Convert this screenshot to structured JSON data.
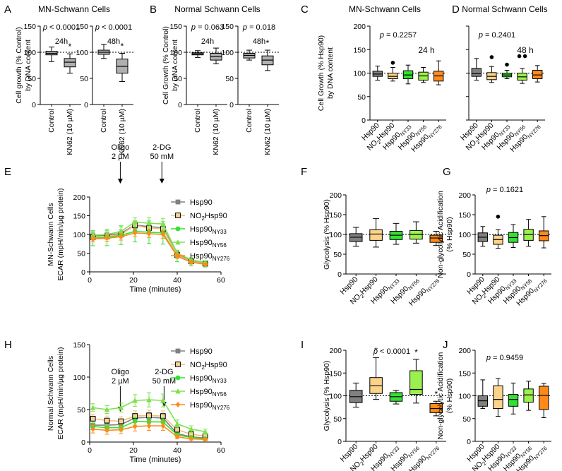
{
  "chart_data": [
    {
      "id": "A",
      "panel_label": "A",
      "type": "box",
      "title": "MN-Schwann Cells",
      "ylabel": [
        "Cell growth (% Control)",
        "by DNA content"
      ],
      "ylim": [
        0,
        150
      ],
      "yticks": [
        0,
        50,
        100,
        150
      ],
      "reference_line": 100,
      "subplots": [
        {
          "label": "24h",
          "pvalue": "p < 0.0001",
          "categories": [
            "Control",
            "KN62 (10 µM)"
          ],
          "boxes": [
            {
              "min": 82,
              "q1": 95,
              "median": 98,
              "q3": 102,
              "max": 110,
              "color": "#b0b0b0"
            },
            {
              "min": 60,
              "q1": 72,
              "median": 81,
              "q3": 88,
              "max": 97,
              "color": "#b0b0b0",
              "star": "*"
            }
          ]
        },
        {
          "label": "48h",
          "pvalue": "p < 0.0001",
          "categories": [
            "Control",
            "KN62 (10 µM)"
          ],
          "boxes": [
            {
              "min": 88,
              "q1": 96,
              "median": 100,
              "q3": 104,
              "max": 115,
              "color": "#b0b0b0"
            },
            {
              "min": 44,
              "q1": 60,
              "median": 73,
              "q3": 87,
              "max": 98,
              "color": "#b0b0b0",
              "star": "*"
            }
          ]
        }
      ]
    },
    {
      "id": "B",
      "panel_label": "B",
      "type": "box",
      "title": "Normal Schwann Cells",
      "ylabel": [
        "Cell Growth (% Control)",
        "by DNA content"
      ],
      "ylim": [
        0,
        150
      ],
      "yticks": [
        0,
        50,
        100,
        150
      ],
      "reference_line": 100,
      "subplots": [
        {
          "label": "24h",
          "pvalue": "p = 0.063",
          "categories": [
            "Control",
            "KN62 (10 µM)"
          ],
          "boxes": [
            {
              "min": 90,
              "q1": 95,
              "median": 97,
              "q3": 99,
              "max": 103,
              "color": "#b0b0b0"
            },
            {
              "min": 78,
              "q1": 85,
              "median": 92,
              "q3": 98,
              "max": 108,
              "color": "#b0b0b0"
            }
          ]
        },
        {
          "label": "48h",
          "pvalue": "p = 0.018",
          "categories": [
            "Control",
            "KN62 (10 µM)"
          ],
          "boxes": [
            {
              "min": 85,
              "q1": 89,
              "median": 94,
              "q3": 98,
              "max": 104,
              "color": "#b0b0b0"
            },
            {
              "min": 65,
              "q1": 76,
              "median": 85,
              "q3": 93,
              "max": 104,
              "color": "#b0b0b0",
              "star": "*"
            }
          ]
        }
      ]
    },
    {
      "id": "C",
      "panel_label": "C",
      "type": "box",
      "title": "MN-Schwann Cells",
      "ylabel": [
        "Cell Growth (% Hsp90)",
        "by DNA content"
      ],
      "ylim": [
        0,
        200
      ],
      "yticks": [
        0,
        50,
        100,
        150,
        200
      ],
      "reference_line": 100,
      "subtitle": "24 h",
      "pvalue": "p = 0.2257",
      "categories": [
        {
          "base": "Hsp90",
          "sub": ""
        },
        {
          "base": "NO",
          "sub": "2",
          "after": "Hsp90"
        },
        {
          "base": "Hsp90",
          "sub": "NY33"
        },
        {
          "base": "Hsp90",
          "sub": "NY56"
        },
        {
          "base": "Hsp90",
          "sub": "NY276"
        }
      ],
      "boxes": [
        {
          "min": 85,
          "q1": 93,
          "median": 98,
          "q3": 104,
          "max": 115,
          "color": "#808080"
        },
        {
          "min": 83,
          "q1": 88,
          "median": 93,
          "q3": 100,
          "max": 112,
          "color": "#fbd38b",
          "outliers": [
            122
          ]
        },
        {
          "min": 77,
          "q1": 88,
          "median": 96,
          "q3": 105,
          "max": 117,
          "color": "#33e033"
        },
        {
          "min": 80,
          "q1": 85,
          "median": 94,
          "q3": 102,
          "max": 112,
          "color": "#9cf04d"
        },
        {
          "min": 75,
          "q1": 83,
          "median": 94,
          "q3": 104,
          "max": 126,
          "color": "#ff8a1a"
        }
      ]
    },
    {
      "id": "D",
      "panel_label": "D",
      "type": "box",
      "title": "Normal Schwann Cells",
      "ylim": [
        0,
        200
      ],
      "yticks": [
        0,
        50,
        100,
        150,
        200
      ],
      "reference_line": 100,
      "subtitle": "48 h",
      "pvalue": "p = 0.2401",
      "categories": [
        {
          "base": "Hsp90",
          "sub": ""
        },
        {
          "base": "NO",
          "sub": "2",
          "after": "Hsp90"
        },
        {
          "base": "Hsp90",
          "sub": "NY33"
        },
        {
          "base": "Hsp90",
          "sub": "NY56"
        },
        {
          "base": "Hsp90",
          "sub": "NY276"
        }
      ],
      "boxes": [
        {
          "min": 85,
          "q1": 93,
          "median": 99,
          "q3": 110,
          "max": 131,
          "color": "#808080"
        },
        {
          "min": 80,
          "q1": 86,
          "median": 93,
          "q3": 101,
          "max": 114,
          "color": "#fbd38b",
          "outliers": [
            134
          ]
        },
        {
          "min": 88,
          "q1": 92,
          "median": 96,
          "q3": 100,
          "max": 106,
          "color": "#33e033",
          "outliers": [
            118
          ]
        },
        {
          "min": 78,
          "q1": 85,
          "median": 92,
          "q3": 100,
          "max": 110,
          "color": "#9cf04d",
          "outliers": [
            136,
            136
          ]
        },
        {
          "min": 81,
          "q1": 88,
          "median": 96,
          "q3": 106,
          "max": 116,
          "color": "#ff8a1a"
        }
      ]
    },
    {
      "id": "E",
      "panel_label": "E",
      "type": "line",
      "row_label": "MN-Schwann Cells",
      "ylabel": "ECAR (mpH/min/µg protein)",
      "xlabel": "Time (minutes)",
      "xlim": [
        0,
        60
      ],
      "xticks": [
        0,
        20,
        40,
        60
      ],
      "ylim": [
        0,
        200
      ],
      "yticks": [
        0,
        50,
        100,
        150,
        200
      ],
      "annotations": [
        {
          "lines": [
            "Oligo",
            "2 µM"
          ],
          "x": 14
        },
        {
          "lines": [
            "2-DG",
            "50 mM"
          ],
          "x": 33
        }
      ],
      "x": [
        1.5,
        7.9,
        14.3,
        20.7,
        27.1,
        33.5,
        40,
        46.4,
        52.8
      ],
      "series": [
        {
          "name": "Hsp90",
          "sub": "",
          "color": "#808080",
          "marker": "square",
          "values": [
            96,
            98,
            103,
            125,
            121,
            118,
            48,
            30,
            24
          ],
          "err": [
            8,
            8,
            9,
            10,
            10,
            10,
            7,
            5,
            5
          ]
        },
        {
          "name": "NO",
          "sub": "2",
          "after": "Hsp90",
          "color": "#f2c078",
          "marker": "square-open",
          "values": [
            93,
            95,
            100,
            124,
            117,
            115,
            45,
            28,
            22
          ],
          "err": [
            8,
            8,
            9,
            10,
            10,
            10,
            7,
            5,
            5
          ]
        },
        {
          "name": "Hsp90",
          "sub": "NY33",
          "color": "#33e033",
          "marker": "circle",
          "values": [
            90,
            92,
            98,
            108,
            106,
            104,
            42,
            26,
            21
          ],
          "err": [
            20,
            22,
            25,
            28,
            30,
            30,
            15,
            10,
            8
          ]
        },
        {
          "name": "Hsp90",
          "sub": "NY56",
          "color": "#7fe04d",
          "marker": "triangle",
          "values": [
            98,
            100,
            108,
            133,
            130,
            128,
            50,
            32,
            25
          ],
          "err": [
            10,
            10,
            12,
            12,
            15,
            15,
            8,
            6,
            5
          ]
        },
        {
          "name": "Hsp90",
          "sub": "NY276",
          "color": "#ff8a1a",
          "marker": "diamond",
          "values": [
            88,
            90,
            94,
            104,
            102,
            100,
            42,
            26,
            20
          ],
          "err": [
            8,
            8,
            9,
            10,
            10,
            10,
            6,
            5,
            4
          ]
        }
      ]
    },
    {
      "id": "F",
      "panel_label": "F",
      "type": "box",
      "ylabel": "Glycolysis (% Hsp90)",
      "ylim": [
        0,
        200
      ],
      "yticks": [
        0,
        50,
        100,
        150,
        200
      ],
      "reference_line": 100,
      "categories": [
        {
          "base": "Hsp90",
          "sub": ""
        },
        {
          "base": "NO",
          "sub": "2",
          "after": "Hsp90"
        },
        {
          "base": "Hsp90",
          "sub": "NY33"
        },
        {
          "base": "Hsp90",
          "sub": "NY56"
        },
        {
          "base": "Hsp90",
          "sub": "NY276"
        }
      ],
      "boxes": [
        {
          "min": 70,
          "q1": 82,
          "median": 93,
          "q3": 102,
          "max": 118,
          "color": "#808080"
        },
        {
          "min": 68,
          "q1": 85,
          "median": 101,
          "q3": 112,
          "max": 140,
          "color": "#fbd38b"
        },
        {
          "min": 75,
          "q1": 87,
          "median": 98,
          "q3": 108,
          "max": 128,
          "color": "#33e033"
        },
        {
          "min": 78,
          "q1": 88,
          "median": 100,
          "q3": 110,
          "max": 132,
          "color": "#9cf04d"
        },
        {
          "min": 72,
          "q1": 80,
          "median": 91,
          "q3": 98,
          "max": 108,
          "color": "#ff8a1a"
        }
      ]
    },
    {
      "id": "G",
      "panel_label": "G",
      "type": "box",
      "pvalue": "p = 0.1621",
      "ylabel": [
        "Non-glycolytic Acidification",
        "(% Hsp90)"
      ],
      "ylim": [
        0,
        200
      ],
      "yticks": [
        0,
        50,
        100,
        150,
        200
      ],
      "reference_line": 100,
      "categories": [
        {
          "base": "Hsp90",
          "sub": ""
        },
        {
          "base": "NO",
          "sub": "2",
          "after": "Hsp90"
        },
        {
          "base": "Hsp90",
          "sub": "NY33"
        },
        {
          "base": "Hsp90",
          "sub": "NY56"
        },
        {
          "base": "Hsp90",
          "sub": "NY276"
        }
      ],
      "boxes": [
        {
          "min": 70,
          "q1": 82,
          "median": 93,
          "q3": 104,
          "max": 120,
          "color": "#808080"
        },
        {
          "min": 65,
          "q1": 75,
          "median": 87,
          "q3": 98,
          "max": 112,
          "color": "#fbd38b",
          "outliers": [
            145
          ]
        },
        {
          "min": 67,
          "q1": 80,
          "median": 92,
          "q3": 105,
          "max": 125,
          "color": "#33e033"
        },
        {
          "min": 70,
          "q1": 85,
          "median": 100,
          "q3": 113,
          "max": 138,
          "color": "#9cf04d"
        },
        {
          "min": 66,
          "q1": 84,
          "median": 97,
          "q3": 109,
          "max": 145,
          "color": "#ff8a1a"
        }
      ]
    },
    {
      "id": "H",
      "panel_label": "H",
      "type": "line",
      "row_label": "Normal Schwann Cells",
      "ylabel": "ECAR (mpH/min/µg protein)",
      "xlabel": "Time (minutes)",
      "xlim": [
        0,
        60
      ],
      "xticks": [
        0,
        20,
        40,
        60
      ],
      "ylim": [
        0,
        150
      ],
      "yticks": [
        0,
        50,
        100,
        150
      ],
      "annotations": [
        {
          "lines": [
            "Oligo",
            "2 µM"
          ],
          "x": 14
        },
        {
          "lines": [
            "2-DG",
            "50 mM"
          ],
          "x": 34
        }
      ],
      "x": [
        1.5,
        7.9,
        14.3,
        20.7,
        27.1,
        33.5,
        40,
        46.4,
        52.8
      ],
      "series": [
        {
          "name": "Hsp90",
          "sub": "",
          "color": "#808080",
          "marker": "square",
          "values": [
            26,
            26,
            27,
            37,
            38,
            37,
            13,
            8,
            6
          ],
          "err": [
            6,
            6,
            6,
            7,
            7,
            7,
            3,
            2,
            2
          ]
        },
        {
          "name": "NO",
          "sub": "2",
          "after": "Hsp90",
          "color": "#f2c078",
          "marker": "square-open",
          "values": [
            36,
            33,
            32,
            40,
            41,
            40,
            19,
            12,
            9
          ],
          "err": [
            7,
            7,
            7,
            8,
            8,
            8,
            4,
            3,
            3
          ]
        },
        {
          "name": "Hsp90",
          "sub": "NY33",
          "color": "#33e033",
          "marker": "circle",
          "values": [
            24,
            22,
            22,
            32,
            31,
            31,
            11,
            7,
            5
          ],
          "err": [
            5,
            5,
            5,
            6,
            6,
            6,
            3,
            2,
            2
          ]
        },
        {
          "name": "Hsp90",
          "sub": "NY56",
          "color": "#7fe04d",
          "marker": "triangle",
          "values": [
            53,
            50,
            53,
            64,
            65,
            64,
            28,
            20,
            16
          ],
          "err": [
            6,
            6,
            7,
            9,
            11,
            10,
            6,
            5,
            4
          ]
        },
        {
          "name": "Hsp90",
          "sub": "NY276",
          "color": "#ff8a1a",
          "marker": "diamond",
          "values": [
            20,
            18,
            19,
            24,
            25,
            25,
            8,
            5,
            4
          ],
          "err": [
            6,
            6,
            6,
            7,
            7,
            7,
            3,
            2,
            2
          ]
        }
      ]
    },
    {
      "id": "I",
      "panel_label": "I",
      "type": "box",
      "pvalue": "p < 0.0001",
      "ylabel": "Glycolysis (% Hsp90)",
      "ylim": [
        0,
        200
      ],
      "yticks": [
        0,
        50,
        100,
        150,
        200
      ],
      "reference_line": 100,
      "categories": [
        {
          "base": "Hsp90",
          "sub": ""
        },
        {
          "base": "NO",
          "sub": "2",
          "after": "Hsp90"
        },
        {
          "base": "Hsp90",
          "sub": "NY33"
        },
        {
          "base": "Hsp90",
          "sub": "NY56"
        },
        {
          "base": "Hsp90",
          "sub": "NY276"
        }
      ],
      "boxes": [
        {
          "min": 75,
          "q1": 85,
          "median": 98,
          "q3": 112,
          "max": 128,
          "color": "#808080"
        },
        {
          "min": 92,
          "q1": 105,
          "median": 122,
          "q3": 140,
          "max": 184,
          "color": "#fbd38b",
          "star": "*"
        },
        {
          "min": 82,
          "q1": 88,
          "median": 98,
          "q3": 107,
          "max": 112,
          "color": "#33e033"
        },
        {
          "min": 84,
          "q1": 103,
          "median": 114,
          "q3": 155,
          "max": 180,
          "color": "#9cf04d",
          "star": "*"
        },
        {
          "min": 56,
          "q1": 63,
          "median": 72,
          "q3": 83,
          "max": 88,
          "color": "#ff8a1a",
          "star": "*"
        }
      ]
    },
    {
      "id": "J",
      "panel_label": "J",
      "type": "box",
      "pvalue": "p = 0.9459",
      "ylabel": [
        "Non-glycolytic Acidification",
        "(% Hsp90)"
      ],
      "ylim": [
        0,
        200
      ],
      "yticks": [
        0,
        50,
        100,
        150,
        200
      ],
      "reference_line": 100,
      "categories": [
        {
          "base": "Hsp90",
          "sub": ""
        },
        {
          "base": "NO",
          "sub": "2",
          "after": "Hsp90"
        },
        {
          "base": "Hsp90",
          "sub": "NY33"
        },
        {
          "base": "Hsp90",
          "sub": "NY56"
        },
        {
          "base": "Hsp90",
          "sub": "NY276"
        }
      ],
      "boxes": [
        {
          "min": 72,
          "q1": 77,
          "median": 89,
          "q3": 100,
          "max": 135,
          "color": "#808080"
        },
        {
          "min": 55,
          "q1": 72,
          "median": 92,
          "q3": 122,
          "max": 138,
          "color": "#fbd38b"
        },
        {
          "min": 60,
          "q1": 77,
          "median": 92,
          "q3": 103,
          "max": 128,
          "color": "#33e033"
        },
        {
          "min": 68,
          "q1": 86,
          "median": 102,
          "q3": 115,
          "max": 132,
          "color": "#9cf04d"
        },
        {
          "min": 52,
          "q1": 70,
          "median": 101,
          "q3": 121,
          "max": 127,
          "color": "#ff8a1a"
        }
      ]
    }
  ]
}
